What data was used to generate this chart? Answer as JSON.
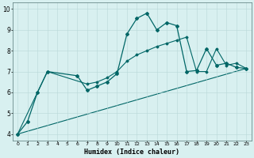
{
  "xlabel": "Humidex (Indice chaleur)",
  "background_color": "#d8f0f0",
  "line_color": "#006666",
  "xlim": [
    -0.5,
    23.5
  ],
  "ylim": [
    3.7,
    10.3
  ],
  "xticks": [
    0,
    1,
    2,
    3,
    4,
    5,
    6,
    7,
    8,
    9,
    10,
    11,
    12,
    13,
    14,
    15,
    16,
    17,
    18,
    19,
    20,
    21,
    22,
    23
  ],
  "yticks": [
    4,
    5,
    6,
    7,
    8,
    9,
    10
  ],
  "series1_x": [
    0,
    1,
    2,
    3,
    6,
    7,
    8,
    9,
    10,
    11,
    12,
    13,
    14,
    15,
    16,
    17,
    18,
    19,
    20,
    21,
    22,
    23
  ],
  "series1_y": [
    4.0,
    4.6,
    6.0,
    7.0,
    6.8,
    6.1,
    6.3,
    6.5,
    6.9,
    8.8,
    9.55,
    9.8,
    9.0,
    9.35,
    9.2,
    7.0,
    7.05,
    8.1,
    7.3,
    7.4,
    7.2,
    7.15
  ],
  "series2_x": [
    0,
    3,
    7,
    8,
    9,
    10,
    11,
    12,
    13,
    14,
    15,
    16,
    17,
    18,
    19,
    20,
    21,
    22,
    23
  ],
  "series2_y": [
    4.0,
    7.0,
    6.4,
    6.5,
    6.7,
    7.0,
    7.5,
    7.8,
    8.0,
    8.2,
    8.35,
    8.5,
    8.65,
    7.0,
    7.0,
    8.1,
    7.3,
    7.4,
    7.15
  ],
  "series3_x": [
    0,
    23
  ],
  "series3_y": [
    4.0,
    7.15
  ]
}
